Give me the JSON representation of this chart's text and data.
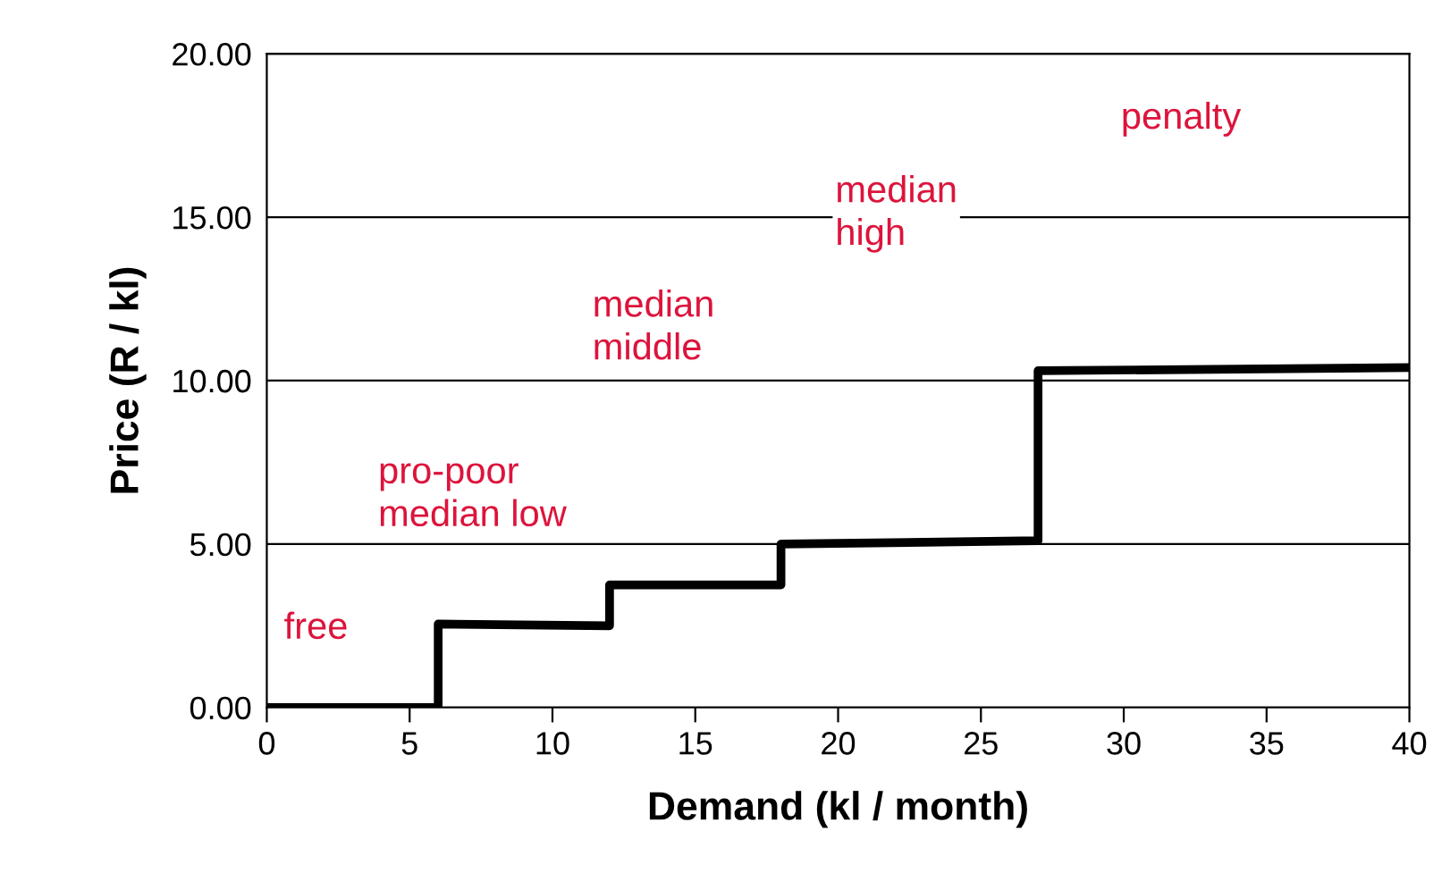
{
  "chart_data": {
    "type": "line",
    "xlabel": "Demand (kl / month)",
    "ylabel": "Price (R / kl)",
    "x": [
      0,
      6,
      6,
      12,
      12,
      18,
      18,
      27,
      27,
      40
    ],
    "series": [
      {
        "color": "#000000",
        "values": [
          0,
          0,
          2.55,
          2.5,
          3.75,
          3.75,
          5.0,
          5.1,
          10.3,
          10.4
        ]
      }
    ],
    "xlim": [
      0,
      40
    ],
    "xticks": [
      0,
      5,
      10,
      15,
      20,
      25,
      30,
      35,
      40
    ],
    "ylim": [
      0,
      20
    ],
    "yticks": [
      {
        "value": 0,
        "label": "0.00"
      },
      {
        "value": 5,
        "label": "5.00"
      },
      {
        "value": 10,
        "label": "10.00"
      },
      {
        "value": 15,
        "label": "15.00"
      },
      {
        "value": 20,
        "label": "20.00"
      }
    ],
    "grid": "y",
    "legend": false,
    "marker": "none",
    "line_style": "solid",
    "annotations": [
      "free",
      "pro-poor\nmedian low",
      "median\nmiddle",
      "median\nhigh",
      "penalty"
    ]
  }
}
